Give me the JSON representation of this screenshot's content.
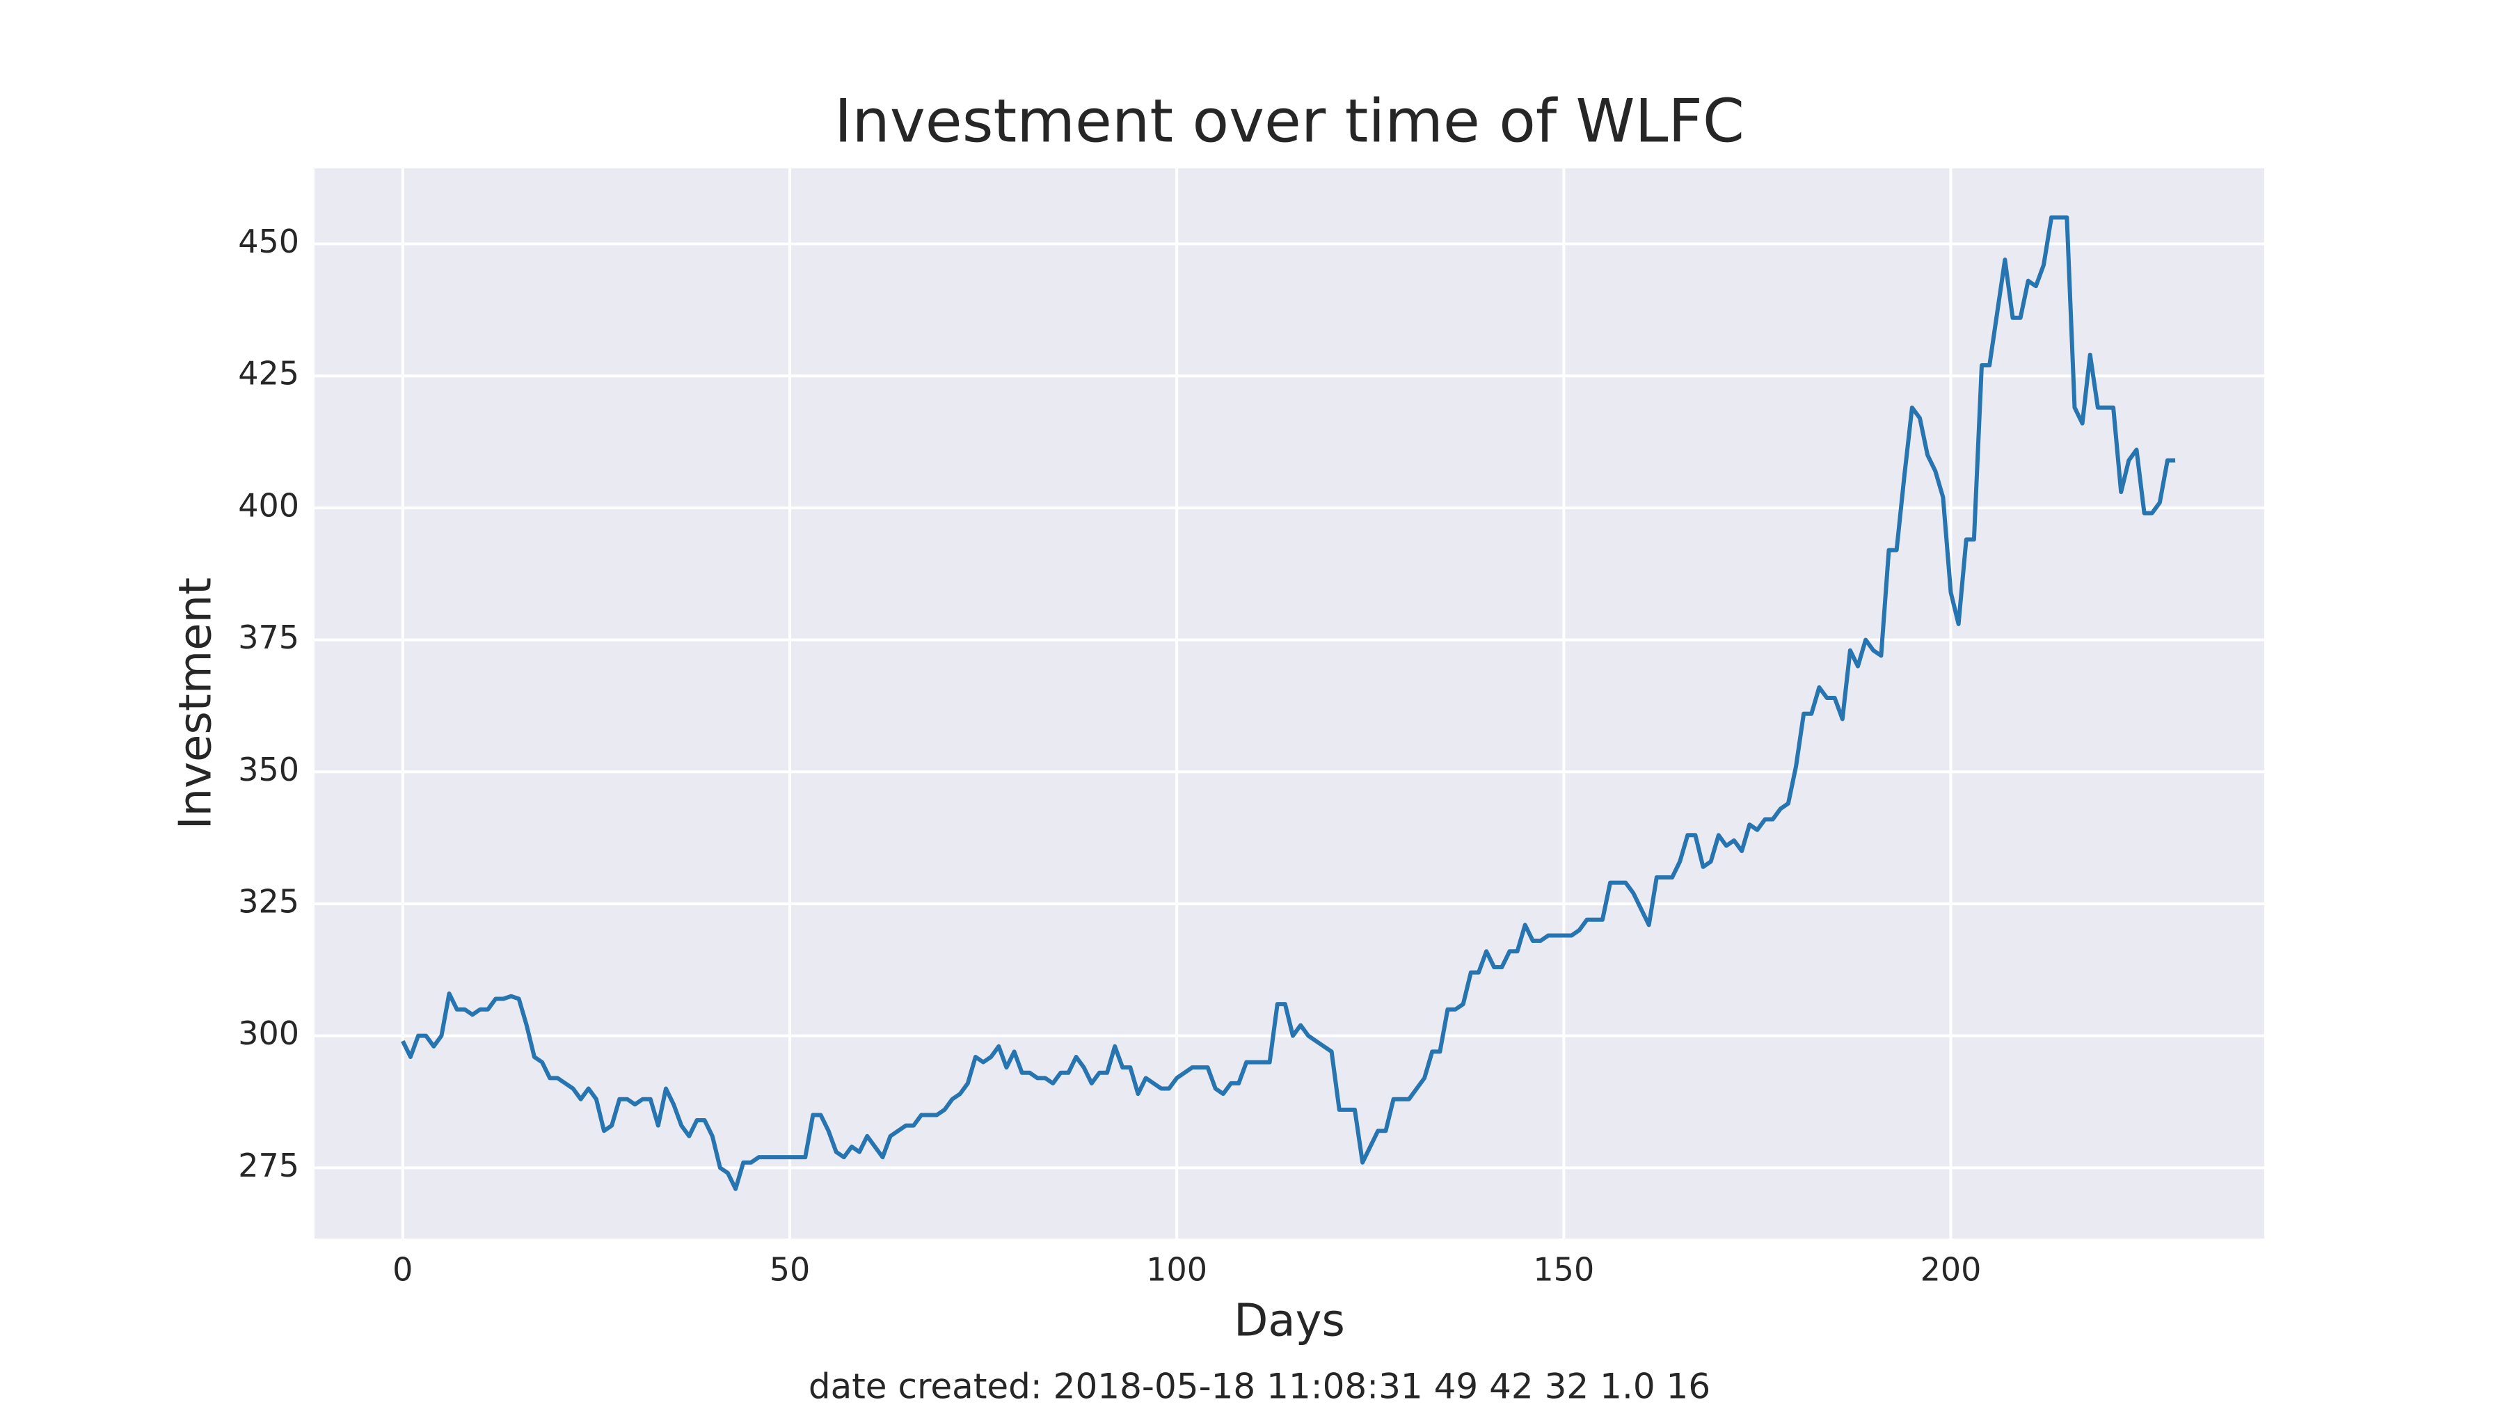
{
  "chart_data": {
    "type": "line",
    "title": "Investment over time of WLFC",
    "xlabel": "Days",
    "ylabel": "Investment",
    "caption": "date created: 2018-05-18 11:08:31 49 42 32 1.0 16",
    "x": [
      0,
      1,
      2,
      3,
      4,
      5,
      6,
      7,
      8,
      9,
      10,
      11,
      12,
      13,
      14,
      15,
      16,
      17,
      18,
      19,
      20,
      21,
      22,
      23,
      24,
      25,
      26,
      27,
      28,
      29,
      30,
      31,
      32,
      33,
      34,
      35,
      36,
      37,
      38,
      39,
      40,
      41,
      42,
      43,
      44,
      45,
      46,
      47,
      48,
      49,
      50,
      51,
      52,
      53,
      54,
      55,
      56,
      57,
      58,
      59,
      60,
      61,
      62,
      63,
      64,
      65,
      66,
      67,
      68,
      69,
      70,
      71,
      72,
      73,
      74,
      75,
      76,
      77,
      78,
      79,
      80,
      81,
      82,
      83,
      84,
      85,
      86,
      87,
      88,
      89,
      90,
      91,
      92,
      93,
      94,
      95,
      96,
      97,
      98,
      99,
      100,
      101,
      102,
      103,
      104,
      105,
      106,
      107,
      108,
      109,
      110,
      111,
      112,
      113,
      114,
      115,
      116,
      117,
      118,
      119,
      120,
      121,
      122,
      123,
      124,
      125,
      126,
      127,
      128,
      129,
      130,
      131,
      132,
      133,
      134,
      135,
      136,
      137,
      138,
      139,
      140,
      141,
      142,
      143,
      144,
      145,
      146,
      147,
      148,
      149,
      150,
      151,
      152,
      153,
      154,
      155,
      156,
      157,
      158,
      159,
      160,
      161,
      162,
      163,
      164,
      165,
      166,
      167,
      168,
      169,
      170,
      171,
      172,
      173,
      174,
      175,
      176,
      177,
      178,
      179,
      180,
      181,
      182,
      183,
      184,
      185,
      186,
      187,
      188,
      189,
      190,
      191,
      192,
      193,
      194,
      195,
      196,
      197,
      198,
      199,
      200,
      201,
      202,
      203,
      204,
      205,
      206,
      207,
      208,
      209,
      210,
      211,
      212,
      213,
      214,
      215,
      216,
      217,
      218,
      219,
      220,
      221,
      222,
      223,
      224,
      225,
      226,
      227,
      228,
      229
    ],
    "series": [
      {
        "name": "WLFC",
        "color": "#2674b0",
        "values": [
          299,
          296,
          300,
          300,
          298,
          300,
          308,
          305,
          305,
          304,
          305,
          305,
          307,
          307,
          307.5,
          307,
          302,
          296,
          295,
          292,
          292,
          291,
          290,
          288,
          290,
          288,
          282,
          283,
          288,
          288,
          287,
          288,
          288,
          283,
          290,
          287,
          283,
          281,
          284,
          284,
          281,
          275,
          274,
          271,
          276,
          276,
          277,
          277,
          277,
          277,
          277,
          277,
          277,
          285,
          285,
          282,
          278,
          277,
          279,
          278,
          281,
          279,
          277,
          281,
          282,
          283,
          283,
          285,
          285,
          285,
          286,
          288,
          289,
          291,
          296,
          295,
          296,
          298,
          294,
          297,
          293,
          293,
          292,
          292,
          291,
          293,
          293,
          296,
          294,
          291,
          293,
          293,
          298,
          294,
          294,
          289,
          292,
          291,
          290,
          290,
          292,
          293,
          294,
          294,
          294,
          290,
          289,
          291,
          291,
          295,
          295,
          295,
          295,
          306,
          306,
          300,
          302,
          300,
          299,
          298,
          297,
          286,
          286,
          286,
          276,
          279,
          282,
          282,
          288,
          288,
          288,
          290,
          292,
          297,
          297,
          305,
          305,
          306,
          312,
          312,
          316,
          313,
          313,
          316,
          316,
          321,
          318,
          318,
          319,
          319,
          319,
          319,
          320,
          322,
          322,
          322,
          329,
          329,
          329,
          327,
          324,
          321,
          330,
          330,
          330,
          333,
          338,
          338,
          332,
          333,
          338,
          336,
          337,
          335,
          340,
          339,
          341,
          341,
          343,
          344,
          351,
          361,
          361,
          366,
          364,
          364,
          360,
          373,
          370,
          375,
          373,
          372,
          392,
          392,
          406,
          419,
          417,
          410,
          407,
          402,
          384,
          378,
          394,
          394,
          427,
          427,
          437,
          447,
          436,
          436,
          443,
          442,
          446,
          455,
          455,
          455,
          419,
          416,
          429,
          419,
          419,
          419,
          403,
          409,
          411,
          399,
          399,
          401,
          409,
          409
        ]
      }
    ],
    "xlim": [
      -11.4,
      240.5
    ],
    "ylim": [
      261.6,
      464.3
    ],
    "xticks": [
      0,
      50,
      100,
      150,
      200
    ],
    "yticks": [
      275,
      300,
      325,
      350,
      375,
      400,
      425,
      450
    ],
    "grid": true
  }
}
